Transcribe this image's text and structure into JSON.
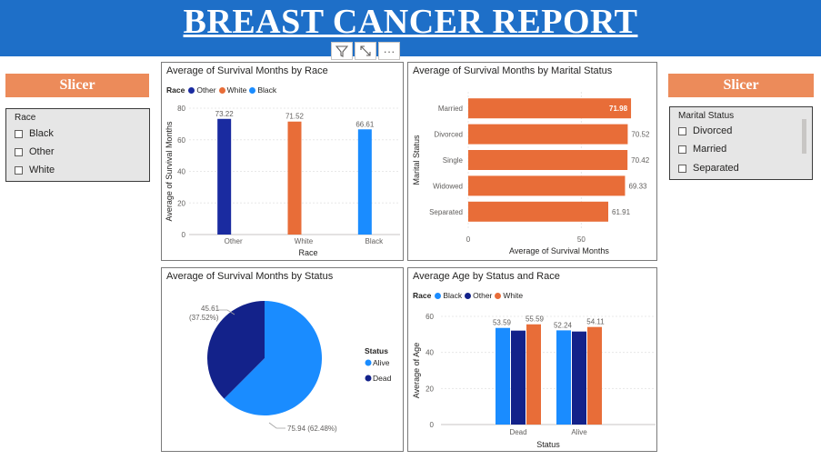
{
  "header": {
    "title": "BREAST CANCER REPORT"
  },
  "toolbar": {
    "filter_icon": "filter-icon",
    "focus_icon": "focus-mode-icon",
    "more_icon": "more-options-icon",
    "more_label": "···"
  },
  "slicer_left": {
    "header": "Slicer",
    "field": "Race",
    "items": [
      "Black",
      "Other",
      "White"
    ]
  },
  "slicer_right": {
    "header": "Slicer",
    "field": "Marital Status",
    "items": [
      "Divorced",
      "Married",
      "Separated"
    ]
  },
  "colors": {
    "dark_blue": "#1a2ba0",
    "orange": "#e86d38",
    "light_blue": "#1a8cff",
    "navy": "#13228a",
    "header_blue": "#1e6fc8",
    "slicer_orange": "#ec8b5a"
  },
  "chart_data": [
    {
      "type": "bar",
      "title": "Average of Survival Months by Race",
      "legend_title": "Race",
      "categories": [
        "Other",
        "White",
        "Black"
      ],
      "values": [
        73.22,
        71.52,
        66.61
      ],
      "data_labels": [
        "73.22",
        "71.52",
        "66.61"
      ],
      "colors": [
        "#1a2ba0",
        "#e86d38",
        "#1a8cff"
      ],
      "xlabel": "Race",
      "ylabel": "Average of Survival Months",
      "ylim": [
        0,
        80
      ],
      "yticks": [
        0,
        20,
        40,
        60,
        80
      ],
      "grid": true,
      "legend_position": "top-left"
    },
    {
      "type": "bar",
      "orientation": "horizontal",
      "title": "Average of Survival Months by Marital Status",
      "categories": [
        "Married",
        "Divorced",
        "Single",
        "Widowed",
        "Separated"
      ],
      "values": [
        71.98,
        70.52,
        70.42,
        69.33,
        61.91
      ],
      "data_labels": [
        "71.98",
        "70.52",
        "70.42",
        "69.33",
        "61.91"
      ],
      "color": "#e86d38",
      "xlabel": "Average of Survival Months",
      "ylabel": "Marital Status",
      "xlim": [
        0,
        80
      ],
      "xticks": [
        0,
        50
      ],
      "grid": true
    },
    {
      "type": "pie",
      "title": "Average of Survival Months by Status",
      "legend_title": "Status",
      "labels": [
        "Alive",
        "Dead"
      ],
      "values": [
        75.94,
        45.61
      ],
      "percent_labels": [
        "75.94 (62.48%)",
        "45.61\n(37.52%)"
      ],
      "colors": [
        "#1a8cff",
        "#13228a"
      ],
      "legend_position": "right"
    },
    {
      "type": "bar",
      "title": "Average Age by Status and Race",
      "legend_title": "Race",
      "categories": [
        "Dead",
        "Alive"
      ],
      "series": [
        {
          "name": "Black",
          "values": [
            53.59,
            52.24
          ],
          "color": "#1a8cff"
        },
        {
          "name": "Other",
          "values": [
            52.1,
            51.6
          ],
          "color": "#13228a"
        },
        {
          "name": "White",
          "values": [
            55.59,
            54.11
          ],
          "color": "#e86d38"
        }
      ],
      "data_labels": [
        [
          "53.59",
          "55.59"
        ],
        [
          "52.24",
          "54.11"
        ]
      ],
      "xlabel": "Status",
      "ylabel": "Average of Age",
      "ylim": [
        0,
        60
      ],
      "yticks": [
        0,
        20,
        40,
        60
      ],
      "grid": true,
      "legend_position": "top-left"
    }
  ]
}
